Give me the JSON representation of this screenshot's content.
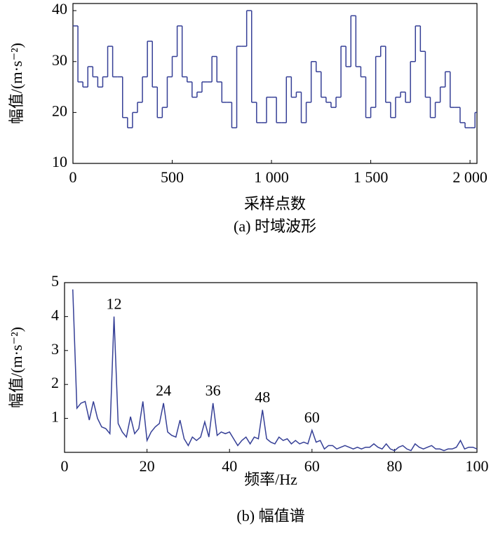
{
  "chart_data": [
    {
      "type": "step",
      "xlabel": "采样点数",
      "ylabel": "幅值/(m·s⁻²)",
      "caption": "(a) 时域波形",
      "color": "#353f96",
      "xlim": [
        0,
        2035
      ],
      "ylim": [
        10,
        41.4
      ],
      "xticks": [
        0,
        500,
        {
          "value": 1000,
          "label": "1 000"
        },
        {
          "value": 1500,
          "label": "1 500"
        },
        {
          "value": 2000,
          "label": "2 000"
        }
      ],
      "yticks": [
        10,
        20,
        30,
        40
      ],
      "x": [
        0,
        25,
        50,
        75,
        100,
        125,
        150,
        175,
        200,
        225,
        250,
        275,
        300,
        325,
        350,
        375,
        400,
        425,
        450,
        475,
        500,
        525,
        550,
        575,
        600,
        625,
        650,
        675,
        700,
        725,
        750,
        775,
        800,
        825,
        850,
        875,
        900,
        925,
        950,
        975,
        1000,
        1025,
        1050,
        1075,
        1100,
        1125,
        1150,
        1175,
        1200,
        1225,
        1250,
        1275,
        1300,
        1325,
        1350,
        1375,
        1400,
        1425,
        1450,
        1475,
        1500,
        1525,
        1550,
        1575,
        1600,
        1625,
        1650,
        1675,
        1700,
        1725,
        1750,
        1775,
        1800,
        1825,
        1850,
        1875,
        1900,
        1925,
        1950,
        1975,
        2000,
        2025
      ],
      "values": [
        37,
        26,
        25,
        29,
        27,
        25,
        27,
        33,
        27,
        27,
        19,
        17,
        20,
        22,
        27,
        34,
        25,
        19,
        21,
        27,
        31,
        37,
        27,
        26,
        23,
        24,
        26,
        26,
        31,
        26,
        22,
        22,
        17,
        33,
        33,
        40,
        22,
        18,
        18,
        23,
        23,
        18,
        18,
        27,
        23,
        24,
        18,
        22,
        30,
        28,
        23,
        22,
        21,
        23,
        33,
        29,
        39,
        29,
        27,
        19,
        21,
        31,
        33,
        22,
        19,
        23,
        24,
        22,
        30,
        37,
        32,
        23,
        19,
        22,
        25,
        28,
        21,
        21,
        18,
        17,
        17,
        20
      ]
    },
    {
      "type": "line",
      "xlabel": "频率/Hz",
      "ylabel": "幅值/(m·s⁻²)",
      "caption": "(b) 幅值谱",
      "color": "#353f96",
      "xlim": [
        0,
        100
      ],
      "ylim": [
        0,
        5
      ],
      "xticks": [
        0,
        20,
        40,
        60,
        80,
        100
      ],
      "yticks": [
        1,
        2,
        3,
        4,
        5
      ],
      "x": [
        2,
        3,
        4,
        5,
        6,
        7,
        8,
        9,
        10,
        11,
        12,
        13,
        14,
        15,
        16,
        17,
        18,
        19,
        20,
        21,
        22,
        23,
        24,
        25,
        26,
        27,
        28,
        29,
        30,
        31,
        32,
        33,
        34,
        35,
        36,
        37,
        38,
        39,
        40,
        41,
        42,
        43,
        44,
        45,
        46,
        47,
        48,
        49,
        50,
        51,
        52,
        53,
        54,
        55,
        56,
        57,
        58,
        59,
        60,
        61,
        62,
        63,
        64,
        65,
        66,
        67,
        68,
        69,
        70,
        71,
        72,
        73,
        74,
        75,
        76,
        77,
        78,
        79,
        80,
        81,
        82,
        83,
        84,
        85,
        86,
        87,
        88,
        89,
        90,
        91,
        92,
        93,
        94,
        95,
        96,
        97,
        98,
        99,
        100
      ],
      "values": [
        4.8,
        1.3,
        1.45,
        1.5,
        0.95,
        1.5,
        1.0,
        0.75,
        0.7,
        0.55,
        4.0,
        0.85,
        0.6,
        0.45,
        1.05,
        0.55,
        0.7,
        1.5,
        0.35,
        0.6,
        0.75,
        0.85,
        1.45,
        0.6,
        0.5,
        0.45,
        0.95,
        0.4,
        0.2,
        0.45,
        0.35,
        0.45,
        0.9,
        0.45,
        1.45,
        0.5,
        0.6,
        0.55,
        0.6,
        0.4,
        0.2,
        0.35,
        0.45,
        0.25,
        0.45,
        0.4,
        1.25,
        0.4,
        0.3,
        0.25,
        0.45,
        0.35,
        0.4,
        0.25,
        0.35,
        0.25,
        0.3,
        0.25,
        0.65,
        0.3,
        0.35,
        0.1,
        0.2,
        0.2,
        0.1,
        0.15,
        0.2,
        0.15,
        0.1,
        0.15,
        0.1,
        0.15,
        0.15,
        0.25,
        0.15,
        0.1,
        0.25,
        0.1,
        0.05,
        0.15,
        0.2,
        0.1,
        0.05,
        0.25,
        0.15,
        0.1,
        0.15,
        0.2,
        0.1,
        0.1,
        0.05,
        0.1,
        0.1,
        0.15,
        0.35,
        0.1,
        0.15,
        0.15,
        0.1
      ],
      "annotations": [
        {
          "text": "12",
          "x": 12,
          "y": 4.0
        },
        {
          "text": "24",
          "x": 24,
          "y": 1.45
        },
        {
          "text": "36",
          "x": 36,
          "y": 1.45
        },
        {
          "text": "48",
          "x": 48,
          "y": 1.25
        },
        {
          "text": "60",
          "x": 60,
          "y": 0.65
        }
      ]
    }
  ]
}
